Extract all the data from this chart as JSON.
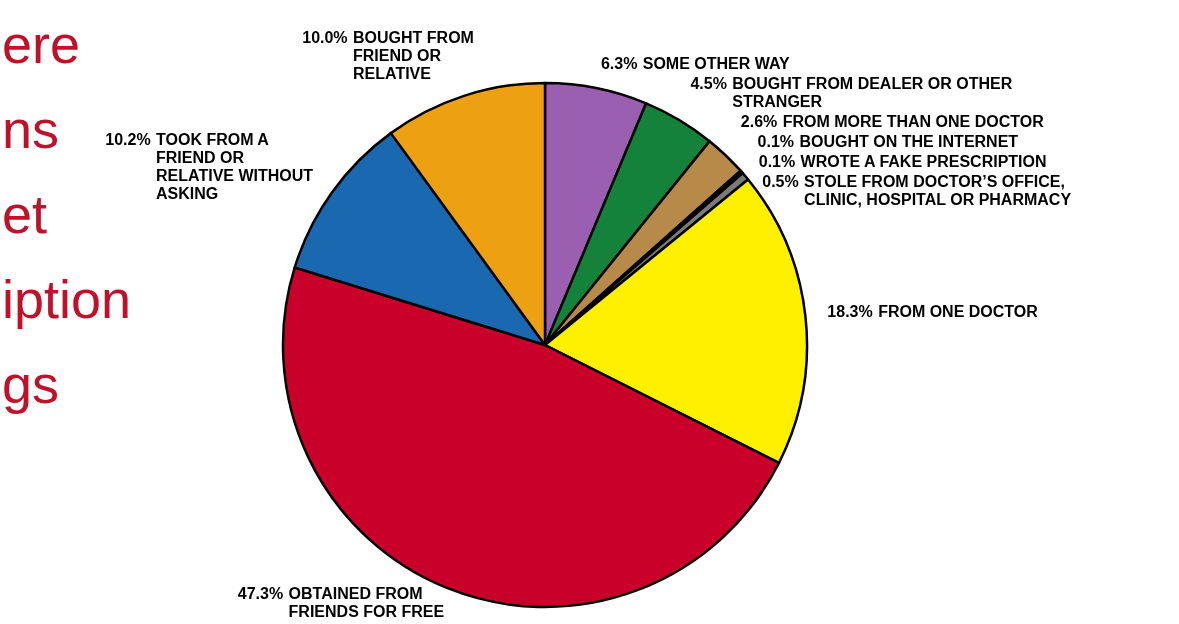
{
  "chart_data": {
    "type": "pie",
    "categories": [
      "SOME OTHER WAY",
      "BOUGHT FROM DEALER OR OTHER STRANGER",
      "FROM MORE THAN ONE DOCTOR",
      "BOUGHT ON THE INTERNET",
      "WROTE A FAKE PRESCRIPTION",
      "STOLE FROM DOCTOR’S OFFICE, CLINIC, HOSPITAL OR PHARMACY",
      "FROM ONE DOCTOR",
      "OBTAINED FROM FRIENDS FOR FREE",
      "TOOK FROM A FRIEND OR RELATIVE WITHOUT ASKING",
      "BOUGHT FROM FRIEND OR RELATIVE"
    ],
    "values": [
      6.3,
      4.5,
      2.6,
      0.1,
      0.1,
      0.5,
      18.3,
      47.3,
      10.2,
      10.0
    ],
    "colors": [
      "#9a5fb0",
      "#14823a",
      "#b88a4a",
      "#7a7a7a",
      "#7a7a7a",
      "#7a7a7a",
      "#fff000",
      "#c8002a",
      "#1a68b0",
      "#eda012"
    ],
    "value_labels": [
      "6.3%",
      "4.5%",
      "2.6%",
      "0.1%",
      "0.1%",
      "0.5%",
      "18.3%",
      "47.3%",
      "10.2%",
      "10.0%"
    ],
    "annotations": [
      "ere",
      "ns",
      "et",
      "iption",
      "gs"
    ]
  }
}
